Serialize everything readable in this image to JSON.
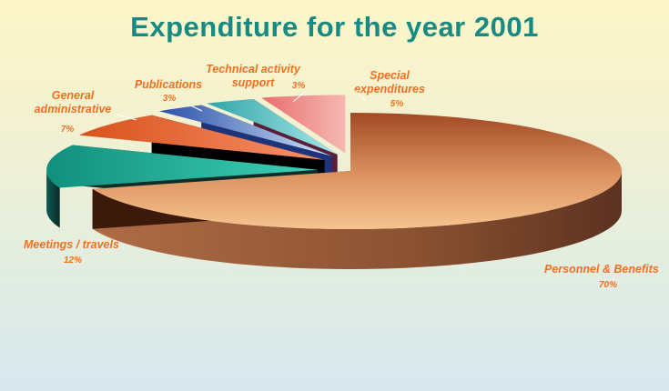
{
  "chart_data": {
    "type": "pie",
    "title": "Expenditure for the year 2001",
    "slices": [
      {
        "name_lines": [
          "Personnel & Benefits"
        ],
        "value": 70,
        "pct_label": "70%",
        "exploded": false
      },
      {
        "name_lines": [
          "Meetings / travels"
        ],
        "value": 12,
        "pct_label": "12%",
        "exploded": true
      },
      {
        "name_lines": [
          "General",
          "administrative"
        ],
        "value": 7,
        "pct_label": "7%",
        "exploded": true
      },
      {
        "name_lines": [
          "Publications"
        ],
        "value": 3,
        "pct_label": "3%",
        "exploded": true
      },
      {
        "name_lines": [
          "Technical activity",
          "support"
        ],
        "value": 3,
        "pct_label": "3%",
        "exploded": true
      },
      {
        "name_lines": [
          "Special",
          "expenditures"
        ],
        "value": 5,
        "pct_label": "5%",
        "exploded": true
      }
    ],
    "colors": {
      "personnel": "#c8744a",
      "meetings": "#1fa391",
      "general": "#ee6a3a",
      "publications": "#3a67c2",
      "technical": "#6fcbcf",
      "special": "#f08e8e",
      "label": "#f07020",
      "title": "#178a83"
    }
  }
}
